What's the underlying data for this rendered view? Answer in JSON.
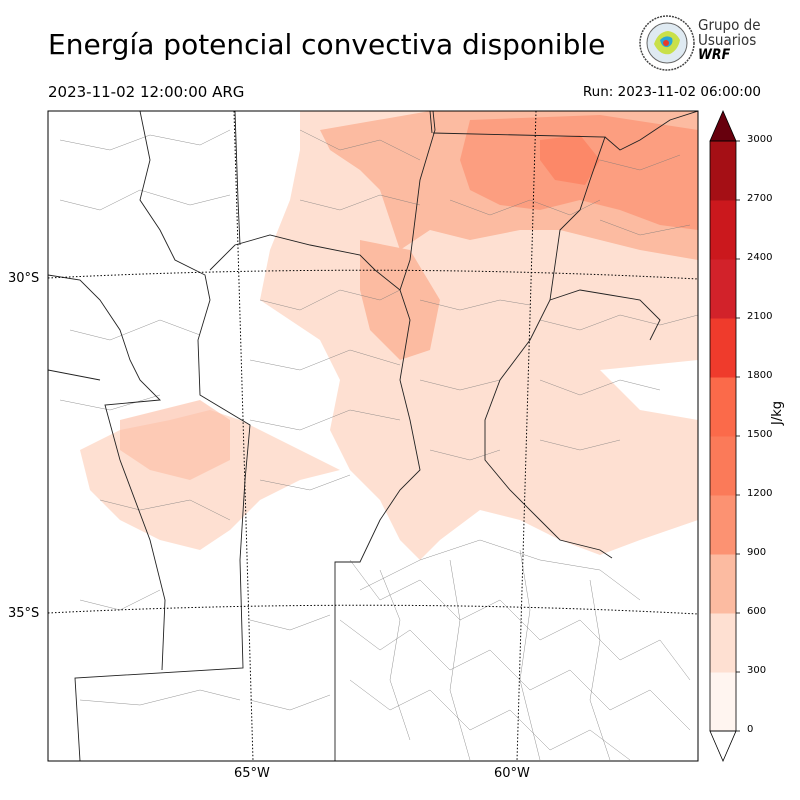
{
  "title": "Energía potencial convectiva disponible",
  "valid_time": "2023-11-02 12:00:00 ARG",
  "run_time": "Run: 2023-11-02 06:00:00",
  "logo": {
    "line1": "Grupo de",
    "line2": "Usuarios",
    "line3": "WRF",
    "icon": "globe-emblem-icon"
  },
  "map": {
    "lat_labels": [
      "30°S",
      "35°S"
    ],
    "lon_labels": [
      "65°W",
      "60°W"
    ]
  },
  "colorbar": {
    "label": "J/kg",
    "ticks": [
      "0",
      "300",
      "600",
      "900",
      "1200",
      "1500",
      "1800",
      "2100",
      "2400",
      "2700",
      "3000"
    ],
    "colors": [
      "#fff5f0",
      "#fee0d2",
      "#fcbba1",
      "#fc9272",
      "#fb7a59",
      "#fb6a4a",
      "#ef3b2c",
      "#d2222a",
      "#cb181d",
      "#a50f15",
      "#7a0510"
    ],
    "over_color": "#67000d",
    "under_color": "#ffffff"
  }
}
